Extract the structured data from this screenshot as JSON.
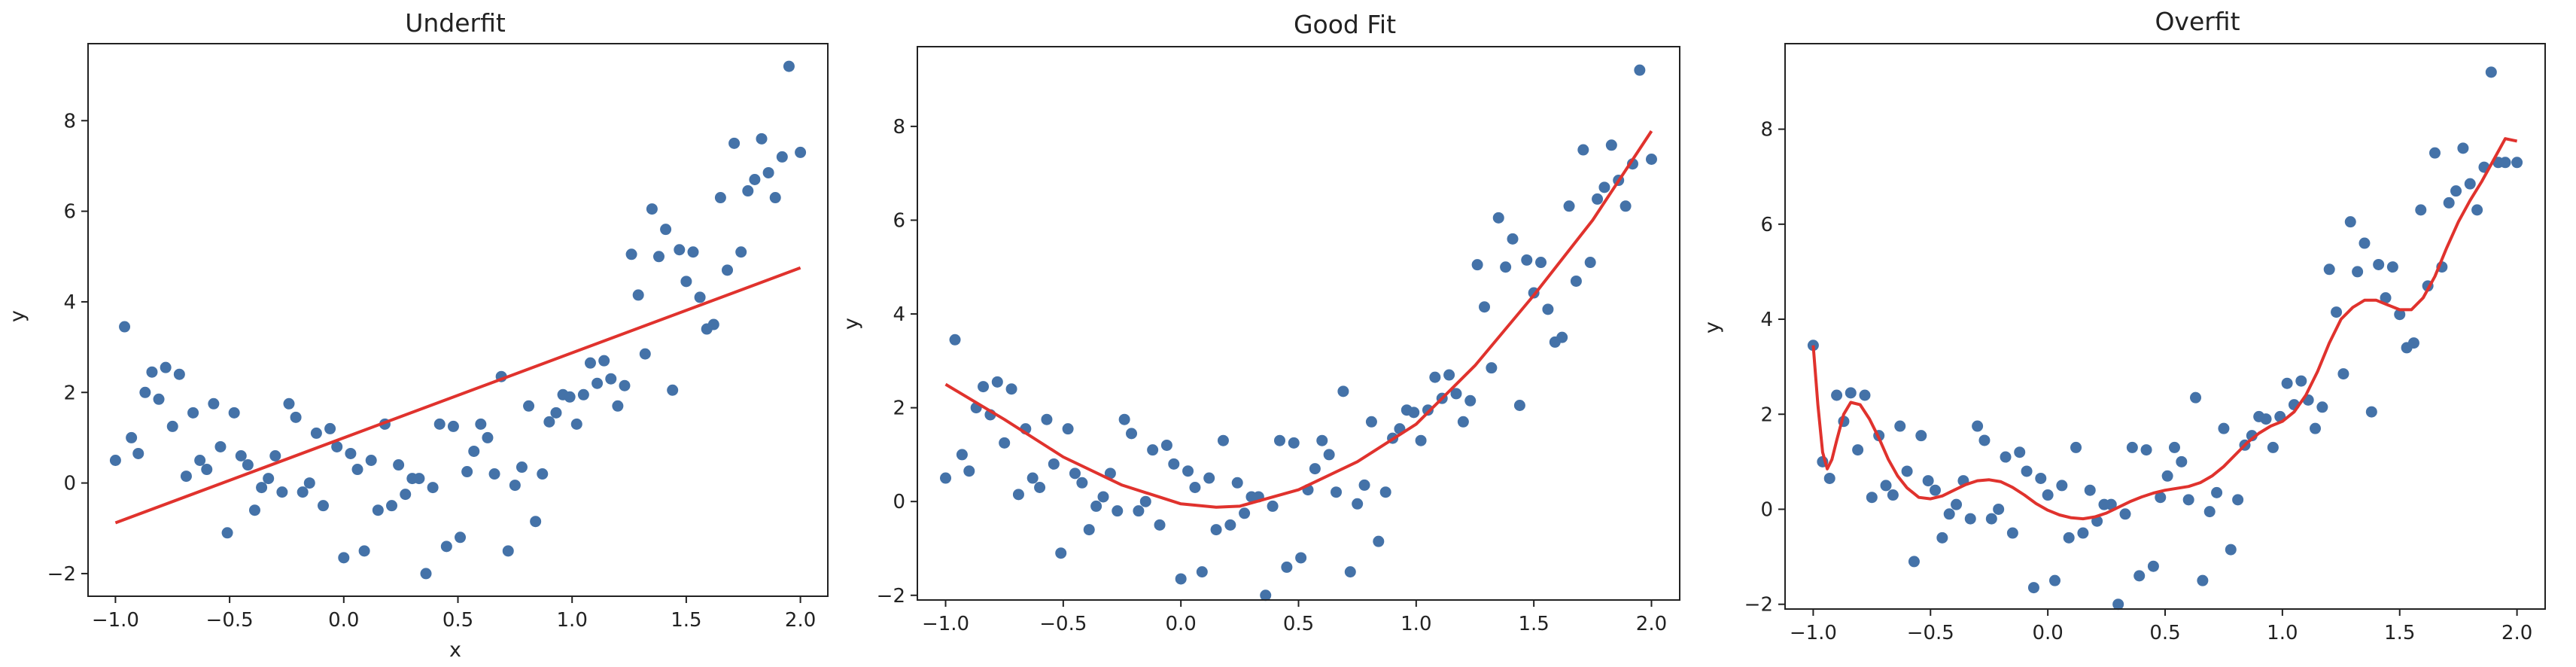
{
  "chart_data": [
    {
      "type": "scatter",
      "title": "Underfit",
      "xlabel": "x",
      "ylabel": "y",
      "xlim": [
        -1.12,
        2.12
      ],
      "ylim": [
        -2.5,
        9.7
      ],
      "xticks": [
        -1.0,
        -0.5,
        0.0,
        0.5,
        1.0,
        1.5,
        2.0
      ],
      "xtick_labels": [
        "−1.0",
        "−0.5",
        "0.0",
        "0.5",
        "1.0",
        "1.5",
        "2.0"
      ],
      "yticks": [
        -2,
        0,
        2,
        4,
        6,
        8
      ],
      "ytick_labels": [
        "−2",
        "0",
        "2",
        "4",
        "6",
        "8"
      ],
      "grid": false,
      "points_color": "#4472a8",
      "fit_color": "#e0322d",
      "fit": {
        "x": [
          -1.0,
          2.0
        ],
        "y": [
          -0.88,
          4.75
        ]
      },
      "points": {
        "x": [
          -1.0,
          -0.96,
          -0.93,
          -0.9,
          -0.87,
          -0.84,
          -0.81,
          -0.78,
          -0.75,
          -0.72,
          -0.69,
          -0.66,
          -0.63,
          -0.6,
          -0.57,
          -0.54,
          -0.51,
          -0.48,
          -0.45,
          -0.42,
          -0.39,
          -0.36,
          -0.33,
          -0.3,
          -0.27,
          -0.24,
          -0.21,
          -0.18,
          -0.15,
          -0.12,
          -0.09,
          -0.06,
          -0.03,
          0.0,
          0.03,
          0.06,
          0.09,
          0.12,
          0.15,
          0.18,
          0.21,
          0.24,
          0.27,
          0.3,
          0.33,
          0.36,
          0.39,
          0.42,
          0.45,
          0.48,
          0.51,
          0.54,
          0.57,
          0.6,
          0.63,
          0.66,
          0.69,
          0.72,
          0.75,
          0.78,
          0.81,
          0.84,
          0.87,
          0.9,
          0.93,
          0.96,
          0.99,
          1.02,
          1.05,
          1.08,
          1.11,
          1.14,
          1.17,
          1.2,
          1.23,
          1.26,
          1.29,
          1.32,
          1.35,
          1.38,
          1.41,
          1.44,
          1.47,
          1.5,
          1.53,
          1.56,
          1.59,
          1.62,
          1.65,
          1.68,
          1.71,
          1.74,
          1.77,
          1.8,
          1.83,
          1.86,
          1.89,
          1.92,
          1.95,
          2.0
        ],
        "y": [
          0.5,
          3.45,
          1.0,
          0.65,
          2.0,
          2.45,
          1.85,
          2.55,
          1.25,
          2.4,
          0.15,
          1.55,
          0.5,
          0.3,
          1.75,
          0.8,
          -1.1,
          1.55,
          0.6,
          0.4,
          -0.6,
          -0.1,
          0.1,
          0.6,
          -0.2,
          1.75,
          1.45,
          -0.2,
          0.0,
          1.1,
          -0.5,
          1.2,
          0.8,
          -1.65,
          0.65,
          0.3,
          -1.5,
          0.5,
          -0.6,
          1.3,
          -0.5,
          0.4,
          -0.25,
          0.1,
          0.1,
          -2.0,
          -0.1,
          1.3,
          -1.4,
          1.25,
          -1.2,
          0.25,
          0.7,
          1.3,
          1.0,
          0.2,
          2.35,
          -1.5,
          -0.05,
          0.35,
          1.7,
          -0.85,
          0.2,
          1.35,
          1.55,
          1.95,
          1.9,
          1.3,
          1.95,
          2.65,
          2.2,
          2.7,
          2.3,
          1.7,
          2.15,
          5.05,
          4.15,
          2.85,
          6.05,
          5.0,
          5.6,
          2.05,
          5.15,
          4.45,
          5.1,
          4.1,
          3.4,
          3.5,
          6.3,
          4.7,
          7.5,
          5.1,
          6.45,
          6.7,
          7.6,
          6.85,
          6.3,
          7.2,
          9.2,
          7.3
        ]
      }
    },
    {
      "type": "scatter",
      "title": "Good Fit",
      "xlabel": "",
      "ylabel": "y",
      "xlim": [
        -1.12,
        2.12
      ],
      "ylim": [
        -2.1,
        9.7
      ],
      "xticks": [
        -1.0,
        -0.5,
        0.0,
        0.5,
        1.0,
        1.5,
        2.0
      ],
      "xtick_labels": [
        "−1.0",
        "−0.5",
        "0.0",
        "0.5",
        "1.0",
        "1.5",
        "2.0"
      ],
      "yticks": [
        -2,
        0,
        2,
        4,
        6,
        8
      ],
      "ytick_labels": [
        "−2",
        "0",
        "2",
        "4",
        "6",
        "8"
      ],
      "grid": false,
      "points_color": "#4472a8",
      "fit_color": "#e0322d",
      "fit": {
        "x": [
          -1.0,
          -0.75,
          -0.5,
          -0.25,
          0.0,
          0.15,
          0.25,
          0.5,
          0.75,
          1.0,
          1.25,
          1.5,
          1.75,
          2.0
        ],
        "y": [
          2.5,
          1.75,
          0.95,
          0.35,
          -0.05,
          -0.12,
          -0.1,
          0.25,
          0.85,
          1.65,
          2.9,
          4.4,
          6.0,
          7.9
        ]
      },
      "points": {
        "x": [
          -1.0,
          -0.96,
          -0.93,
          -0.9,
          -0.87,
          -0.84,
          -0.81,
          -0.78,
          -0.75,
          -0.72,
          -0.69,
          -0.66,
          -0.63,
          -0.6,
          -0.57,
          -0.54,
          -0.51,
          -0.48,
          -0.45,
          -0.42,
          -0.39,
          -0.36,
          -0.33,
          -0.3,
          -0.27,
          -0.24,
          -0.21,
          -0.18,
          -0.15,
          -0.12,
          -0.09,
          -0.06,
          -0.03,
          0.0,
          0.03,
          0.06,
          0.09,
          0.12,
          0.15,
          0.18,
          0.21,
          0.24,
          0.27,
          0.3,
          0.33,
          0.36,
          0.39,
          0.42,
          0.45,
          0.48,
          0.51,
          0.54,
          0.57,
          0.6,
          0.63,
          0.66,
          0.69,
          0.72,
          0.75,
          0.78,
          0.81,
          0.84,
          0.87,
          0.9,
          0.93,
          0.96,
          0.99,
          1.02,
          1.05,
          1.08,
          1.11,
          1.14,
          1.17,
          1.2,
          1.23,
          1.26,
          1.29,
          1.32,
          1.35,
          1.38,
          1.41,
          1.44,
          1.47,
          1.5,
          1.53,
          1.56,
          1.59,
          1.62,
          1.65,
          1.68,
          1.71,
          1.74,
          1.77,
          1.8,
          1.83,
          1.86,
          1.89,
          1.92,
          1.95,
          2.0
        ],
        "y": [
          0.5,
          3.45,
          1.0,
          0.65,
          2.0,
          2.45,
          1.85,
          2.55,
          1.25,
          2.4,
          0.15,
          1.55,
          0.5,
          0.3,
          1.75,
          0.8,
          -1.1,
          1.55,
          0.6,
          0.4,
          -0.6,
          -0.1,
          0.1,
          0.6,
          -0.2,
          1.75,
          1.45,
          -0.2,
          0.0,
          1.1,
          -0.5,
          1.2,
          0.8,
          -1.65,
          0.65,
          0.3,
          -1.5,
          0.5,
          -0.6,
          1.3,
          -0.5,
          0.4,
          -0.25,
          0.1,
          0.1,
          -2.0,
          -0.1,
          1.3,
          -1.4,
          1.25,
          -1.2,
          0.25,
          0.7,
          1.3,
          1.0,
          0.2,
          2.35,
          -1.5,
          -0.05,
          0.35,
          1.7,
          -0.85,
          0.2,
          1.35,
          1.55,
          1.95,
          1.9,
          1.3,
          1.95,
          2.65,
          2.2,
          2.7,
          2.3,
          1.7,
          2.15,
          5.05,
          4.15,
          2.85,
          6.05,
          5.0,
          5.6,
          2.05,
          5.15,
          4.45,
          5.1,
          4.1,
          3.4,
          3.5,
          6.3,
          4.7,
          7.5,
          5.1,
          6.45,
          6.7,
          7.6,
          6.85,
          6.3,
          7.2,
          9.2,
          7.3
        ]
      }
    },
    {
      "type": "scatter",
      "title": "Overfit",
      "xlabel": "",
      "ylabel": "y",
      "xlim": [
        -1.12,
        2.12
      ],
      "ylim": [
        -2.1,
        9.8
      ],
      "xticks": [
        -1.0,
        -0.5,
        0.0,
        0.5,
        1.0,
        1.5,
        2.0
      ],
      "xtick_labels": [
        "−1.0",
        "−0.5",
        "0.0",
        "0.5",
        "1.0",
        "1.5",
        "2.0"
      ],
      "yticks": [
        -2,
        0,
        2,
        4,
        6,
        8
      ],
      "ytick_labels": [
        "−2",
        "0",
        "2",
        "4",
        "6",
        "8"
      ],
      "grid": false,
      "points_color": "#4472a8",
      "fit_color": "#e0322d",
      "fit": {
        "x": [
          -1.0,
          -0.98,
          -0.96,
          -0.94,
          -0.92,
          -0.9,
          -0.87,
          -0.84,
          -0.8,
          -0.76,
          -0.72,
          -0.68,
          -0.64,
          -0.6,
          -0.55,
          -0.5,
          -0.45,
          -0.4,
          -0.35,
          -0.3,
          -0.25,
          -0.2,
          -0.15,
          -0.1,
          -0.05,
          0.0,
          0.05,
          0.1,
          0.15,
          0.2,
          0.25,
          0.3,
          0.35,
          0.4,
          0.45,
          0.5,
          0.55,
          0.6,
          0.65,
          0.7,
          0.75,
          0.8,
          0.85,
          0.9,
          0.95,
          1.0,
          1.05,
          1.1,
          1.15,
          1.2,
          1.25,
          1.3,
          1.35,
          1.4,
          1.45,
          1.5,
          1.55,
          1.6,
          1.65,
          1.7,
          1.75,
          1.8,
          1.85,
          1.9,
          1.95,
          2.0
        ],
        "y": [
          3.45,
          2.2,
          1.2,
          0.85,
          1.05,
          1.45,
          2.0,
          2.25,
          2.2,
          1.9,
          1.5,
          1.05,
          0.7,
          0.45,
          0.25,
          0.22,
          0.28,
          0.4,
          0.52,
          0.6,
          0.62,
          0.58,
          0.46,
          0.3,
          0.12,
          -0.02,
          -0.12,
          -0.18,
          -0.2,
          -0.16,
          -0.08,
          0.04,
          0.16,
          0.26,
          0.34,
          0.4,
          0.44,
          0.48,
          0.56,
          0.7,
          0.9,
          1.15,
          1.4,
          1.6,
          1.75,
          1.85,
          2.05,
          2.4,
          2.9,
          3.5,
          4.0,
          4.25,
          4.4,
          4.4,
          4.3,
          4.2,
          4.2,
          4.45,
          4.9,
          5.5,
          6.05,
          6.5,
          6.9,
          7.35,
          7.8,
          7.75
        ]
      },
      "points": {
        "x": [
          -1.0,
          -0.96,
          -0.93,
          -0.9,
          -0.87,
          -0.84,
          -0.81,
          -0.78,
          -0.75,
          -0.72,
          -0.69,
          -0.66,
          -0.63,
          -0.6,
          -0.57,
          -0.54,
          -0.51,
          -0.48,
          -0.45,
          -0.42,
          -0.39,
          -0.36,
          -0.33,
          -0.3,
          -0.27,
          -0.24,
          -0.21,
          -0.18,
          -0.15,
          -0.12,
          -0.09,
          -0.06,
          -0.03,
          0.0,
          0.03,
          0.06,
          0.09,
          0.12,
          0.15,
          0.18,
          0.21,
          0.24,
          0.27,
          0.3,
          0.33,
          0.36,
          0.39,
          0.42,
          0.45,
          0.48,
          0.51,
          0.54,
          0.57,
          0.6,
          0.63,
          0.66,
          0.69,
          0.72,
          0.75,
          0.78,
          0.81,
          0.84,
          0.87,
          0.9,
          0.93,
          0.96,
          0.99,
          1.02,
          1.05,
          1.08,
          1.11,
          1.14,
          1.17,
          1.2,
          1.23,
          1.26,
          1.29,
          1.32,
          1.35,
          1.38,
          1.41,
          1.44,
          1.47,
          1.5,
          1.53,
          1.56,
          1.59,
          1.62,
          1.65,
          1.68,
          1.71,
          1.74,
          1.77,
          1.8,
          1.83,
          1.86,
          1.89,
          1.92,
          1.95,
          2.0
        ],
        "y": [
          3.45,
          1.0,
          0.65,
          2.4,
          1.85,
          2.45,
          1.25,
          2.4,
          0.25,
          1.55,
          0.5,
          0.3,
          1.75,
          0.8,
          -1.1,
          1.55,
          0.6,
          0.4,
          -0.6,
          -0.1,
          0.1,
          0.6,
          -0.2,
          1.75,
          1.45,
          -0.2,
          0.0,
          1.1,
          -0.5,
          1.2,
          0.8,
          -1.65,
          0.65,
          0.3,
          -1.5,
          0.5,
          -0.6,
          1.3,
          -0.5,
          0.4,
          -0.25,
          0.1,
          0.1,
          -2.0,
          -0.1,
          1.3,
          -1.4,
          1.25,
          -1.2,
          0.25,
          0.7,
          1.3,
          1.0,
          0.2,
          2.35,
          -1.5,
          -0.05,
          0.35,
          1.7,
          -0.85,
          0.2,
          1.35,
          1.55,
          1.95,
          1.9,
          1.3,
          1.95,
          2.65,
          2.2,
          2.7,
          2.3,
          1.7,
          2.15,
          5.05,
          4.15,
          2.85,
          6.05,
          5.0,
          5.6,
          2.05,
          5.15,
          4.45,
          5.1,
          4.1,
          3.4,
          3.5,
          6.3,
          4.7,
          7.5,
          5.1,
          6.45,
          6.7,
          7.6,
          6.85,
          6.3,
          7.2,
          9.2,
          7.3,
          7.3,
          7.3
        ]
      }
    }
  ]
}
